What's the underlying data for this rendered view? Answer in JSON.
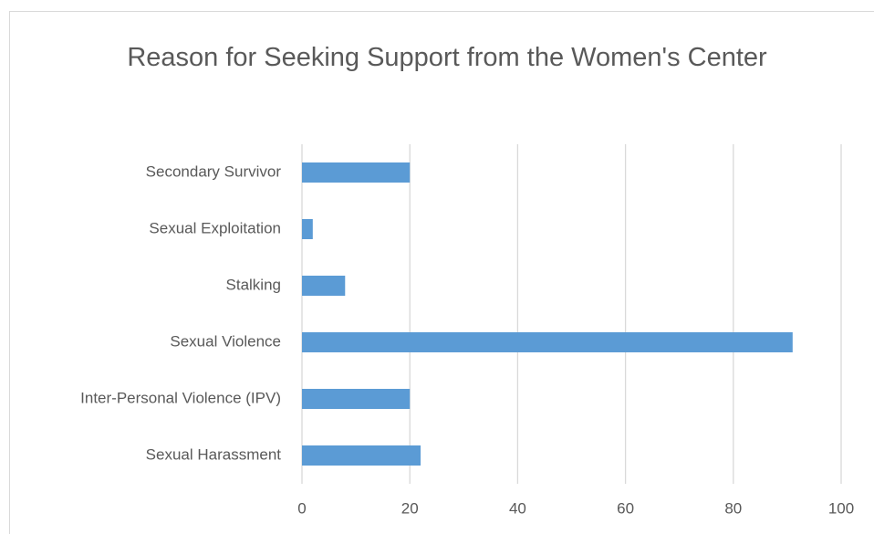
{
  "chart_data": {
    "type": "bar",
    "orientation": "horizontal",
    "title": "Reason for Seeking Support from the Women's Center",
    "categories": [
      "Secondary Survivor",
      "Sexual Exploitation",
      "Stalking",
      "Sexual Violence",
      "Inter-Personal Violence (IPV)",
      "Sexual Harassment"
    ],
    "values": [
      20,
      2,
      8,
      91,
      20,
      22
    ],
    "color": "#5b9bd5",
    "xlim": [
      0,
      100
    ],
    "xticks": [
      0,
      20,
      40,
      60,
      80,
      100
    ],
    "grid": true
  }
}
